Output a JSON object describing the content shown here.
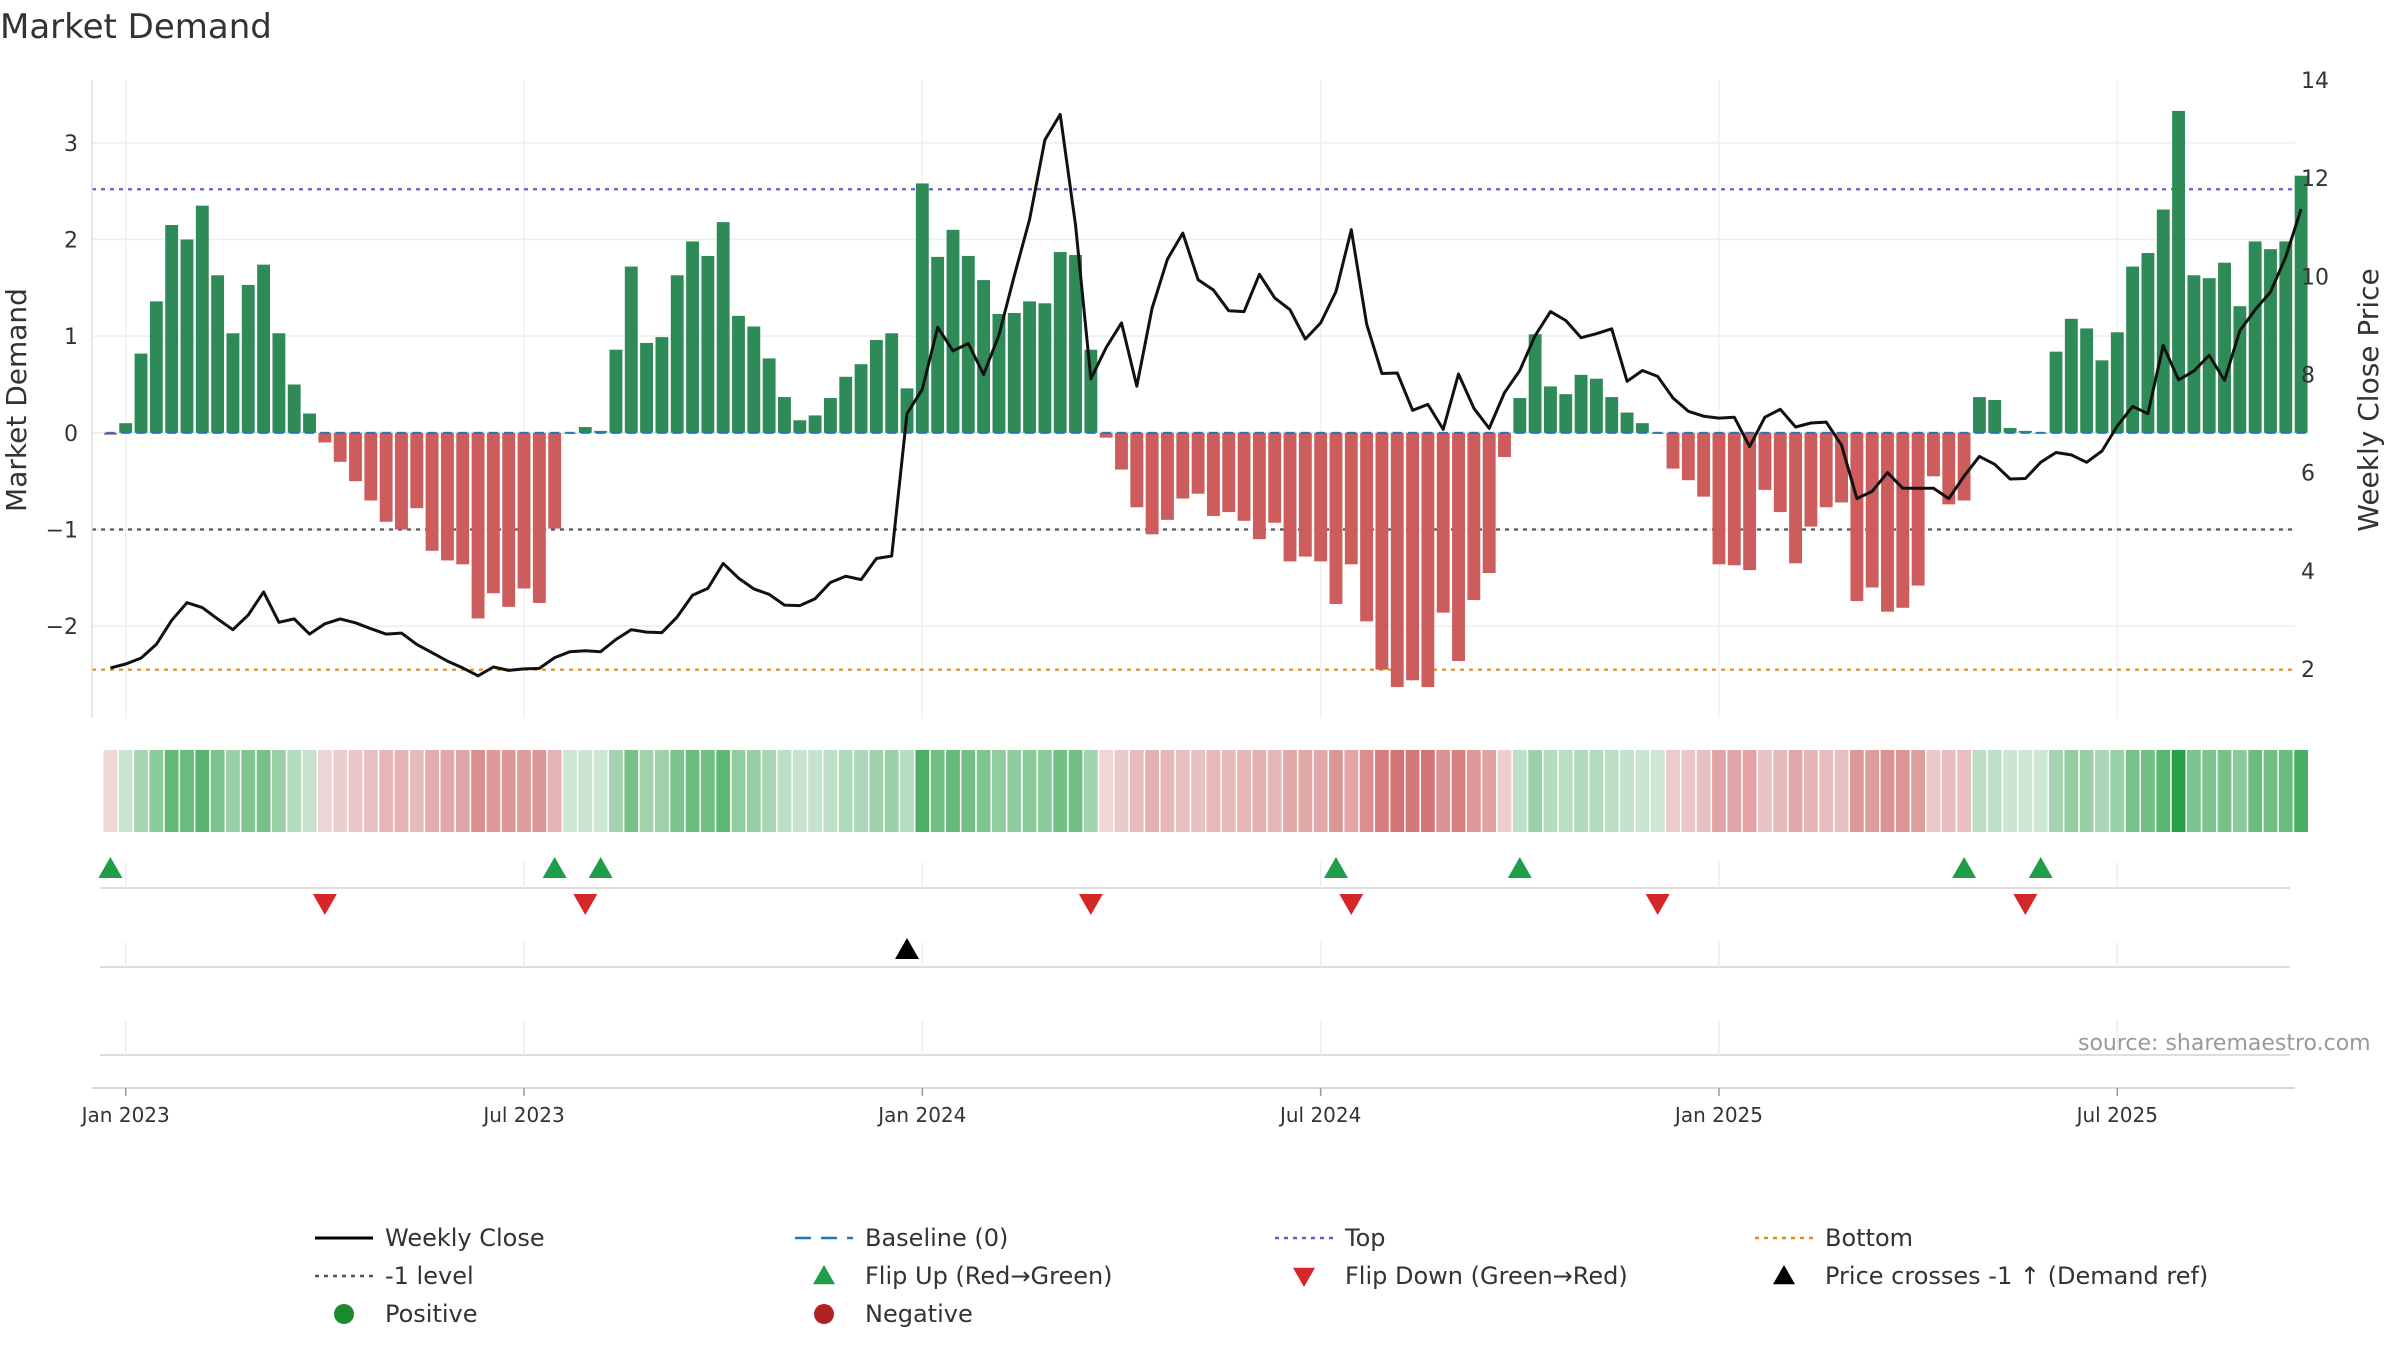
{
  "chart_data": {
    "type": "bar",
    "title": "Market Demand",
    "ylabel": "Market Demand",
    "y2label": "Weekly Close Price",
    "ylim": [
      -2.95,
      3.65
    ],
    "y_ticks": [
      {
        "value": 3,
        "label": "3"
      },
      {
        "value": 2,
        "label": "2"
      },
      {
        "value": 1,
        "label": "1"
      },
      {
        "value": 0,
        "label": "0"
      },
      {
        "value": -1,
        "label": "−1"
      },
      {
        "value": -2,
        "label": "−2"
      }
    ],
    "y2lim": [
      1.0,
      14.0
    ],
    "y2_ticks": [
      {
        "value": 14,
        "label": "14"
      },
      {
        "value": 12,
        "label": "12"
      },
      {
        "value": 10,
        "label": "10"
      },
      {
        "value": 8,
        "label": "8"
      },
      {
        "value": 6,
        "label": "6"
      },
      {
        "value": 4,
        "label": "4"
      },
      {
        "value": 2,
        "label": "2"
      }
    ],
    "x_ticks": [
      {
        "week": 1,
        "label": "Jan 2023"
      },
      {
        "week": 27,
        "label": "Jul 2023"
      },
      {
        "week": 53,
        "label": "Jan 2024"
      },
      {
        "week": 79,
        "label": "Jul 2024"
      },
      {
        "week": 105,
        "label": "Jan 2025"
      },
      {
        "week": 131,
        "label": "Jul 2025"
      }
    ],
    "week_range": [
      -1.2,
      142.6
    ],
    "reference_lines": {
      "top": 2.52,
      "minus_one": -1.0,
      "bottom": -2.45,
      "baseline": 0
    },
    "demand": [
      -0.02,
      0.1,
      0.82,
      1.36,
      2.15,
      2.0,
      2.35,
      1.63,
      1.03,
      1.53,
      1.74,
      1.03,
      0.5,
      0.2,
      -0.1,
      -0.3,
      -0.5,
      -0.7,
      -0.92,
      -1.0,
      -0.78,
      -1.22,
      -1.32,
      -1.36,
      -1.92,
      -1.66,
      -1.8,
      -1.61,
      -1.76,
      -0.99,
      0.0,
      0.06,
      0.02,
      0.86,
      1.72,
      0.93,
      0.99,
      1.63,
      1.98,
      1.83,
      2.18,
      1.21,
      1.1,
      0.77,
      0.37,
      0.13,
      0.18,
      0.36,
      0.58,
      0.71,
      0.96,
      1.03,
      0.46,
      2.58,
      1.82,
      2.1,
      1.83,
      1.58,
      1.23,
      1.24,
      1.36,
      1.34,
      1.87,
      1.84,
      0.86,
      -0.05,
      -0.38,
      -0.77,
      -1.05,
      -0.9,
      -0.68,
      -0.63,
      -0.86,
      -0.82,
      -0.91,
      -1.1,
      -0.93,
      -1.33,
      -1.28,
      -1.33,
      -1.77,
      -1.36,
      -1.95,
      -2.45,
      -2.63,
      -2.56,
      -2.63,
      -1.86,
      -2.36,
      -1.73,
      -1.45,
      -0.25,
      0.36,
      1.02,
      0.48,
      0.4,
      0.6,
      0.56,
      0.37,
      0.21,
      0.1,
      0.0,
      -0.37,
      -0.49,
      -0.66,
      -1.36,
      -1.37,
      -1.42,
      -0.59,
      -0.82,
      -1.35,
      -0.97,
      -0.77,
      -0.72,
      -1.74,
      -1.6,
      -1.85,
      -1.81,
      -1.58,
      -0.45,
      -0.74,
      -0.7,
      0.37,
      0.34,
      0.05,
      0.02,
      0.0,
      0.84,
      1.18,
      1.08,
      0.75,
      1.04,
      1.72,
      1.86,
      2.31,
      3.33,
      1.63,
      1.6,
      1.76,
      1.31,
      1.98,
      1.9,
      1.98,
      2.66
    ],
    "weekly_close": [
      2.02,
      2.1,
      2.22,
      2.5,
      2.99,
      3.35,
      3.25,
      3.02,
      2.8,
      3.1,
      3.57,
      2.95,
      3.02,
      2.71,
      2.92,
      3.02,
      2.94,
      2.82,
      2.71,
      2.73,
      2.5,
      2.33,
      2.16,
      2.02,
      1.86,
      2.04,
      1.97,
      2.0,
      2.01,
      2.23,
      2.35,
      2.37,
      2.35,
      2.6,
      2.8,
      2.75,
      2.74,
      3.06,
      3.5,
      3.64,
      4.15,
      3.85,
      3.63,
      3.52,
      3.3,
      3.29,
      3.43,
      3.76,
      3.89,
      3.82,
      4.25,
      4.3,
      7.2,
      7.7,
      8.96,
      8.48,
      8.63,
      8.0,
      8.8,
      10.01,
      11.16,
      12.78,
      13.3,
      11.05,
      7.91,
      8.55,
      9.05,
      7.76,
      9.35,
      10.35,
      10.88,
      9.93,
      9.72,
      9.3,
      9.28,
      10.04,
      9.56,
      9.32,
      8.72,
      9.05,
      9.69,
      10.95,
      9.03,
      8.02,
      8.03,
      7.27,
      7.39,
      6.88,
      8.01,
      7.31,
      6.9,
      7.63,
      8.08,
      8.79,
      9.28,
      9.1,
      8.75,
      8.83,
      8.93,
      7.86,
      8.08,
      7.96,
      7.52,
      7.25,
      7.15,
      7.11,
      7.13,
      6.53,
      7.13,
      7.29,
      6.93,
      7.01,
      7.03,
      6.56,
      5.47,
      5.62,
      6.0,
      5.68,
      5.68,
      5.68,
      5.47,
      5.93,
      6.33,
      6.17,
      5.87,
      5.88,
      6.21,
      6.41,
      6.36,
      6.21,
      6.44,
      6.95,
      7.35,
      7.2,
      8.59,
      7.89,
      8.07,
      8.39,
      7.88,
      8.89,
      9.32,
      9.68,
      10.4,
      11.37
    ],
    "flip_up_weeks": [
      0,
      29,
      32,
      80,
      92,
      121,
      126
    ],
    "flip_down_weeks": [
      14,
      31,
      64,
      81,
      101,
      125
    ],
    "price_cross_weeks": [
      52
    ],
    "annotation": "source: sharemaestro.com"
  },
  "legend": {
    "items": [
      {
        "label": "Weekly Close",
        "kind": "line",
        "color": "#000000"
      },
      {
        "label": "Baseline (0)",
        "kind": "dash",
        "color": "#1f77b4"
      },
      {
        "label": "Top",
        "kind": "dot",
        "color": "#6a5acd"
      },
      {
        "label": "Bottom",
        "kind": "dot",
        "color": "#e08a1e"
      },
      {
        "label": "-1 level",
        "kind": "dot",
        "color": "#555555"
      },
      {
        "label": "Flip Up (Red→Green)",
        "kind": "up",
        "color": "#1f9e4a"
      },
      {
        "label": "Flip Down (Green→Red)",
        "kind": "down",
        "color": "#d62728"
      },
      {
        "label": "Price crosses -1 ↑ (Demand ref)",
        "kind": "up",
        "color": "#000000"
      },
      {
        "label": "Positive",
        "kind": "circle",
        "color": "#1e8a2e"
      },
      {
        "label": "Negative",
        "kind": "circle",
        "color": "#b22222"
      }
    ]
  },
  "colors": {
    "positive_bar": "#2e8b57",
    "negative_bar": "#cd5c5c",
    "price_line": "#111111"
  }
}
